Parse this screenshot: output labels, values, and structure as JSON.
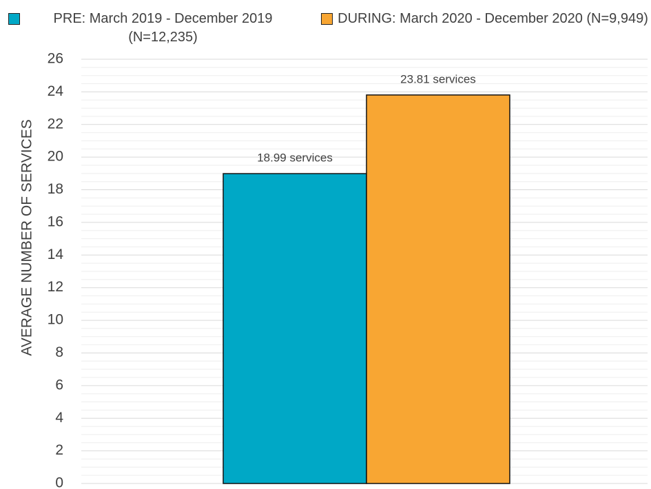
{
  "chart_data": {
    "type": "bar",
    "y_axis_label": "AVERAGE NUMBER OF SERVICES",
    "categories": [
      null
    ],
    "series": [
      {
        "name": "PRE: March 2019 - December 2019 (N=12,235)",
        "color": "#00a8c6",
        "values": [
          18.99
        ],
        "value_labels": [
          "18.99 services"
        ]
      },
      {
        "name": "DURING: March 2020 - December 2020 (N=9,949)",
        "color": "#f8a633",
        "values": [
          23.81
        ],
        "value_labels": [
          "23.81 services"
        ]
      }
    ],
    "ylim": [
      0,
      26
    ],
    "yticks": [
      0,
      2,
      4,
      6,
      8,
      10,
      12,
      14,
      16,
      18,
      20,
      22,
      24,
      26
    ],
    "grid": true,
    "minor_grid_divisions": 4,
    "legend": "top"
  }
}
